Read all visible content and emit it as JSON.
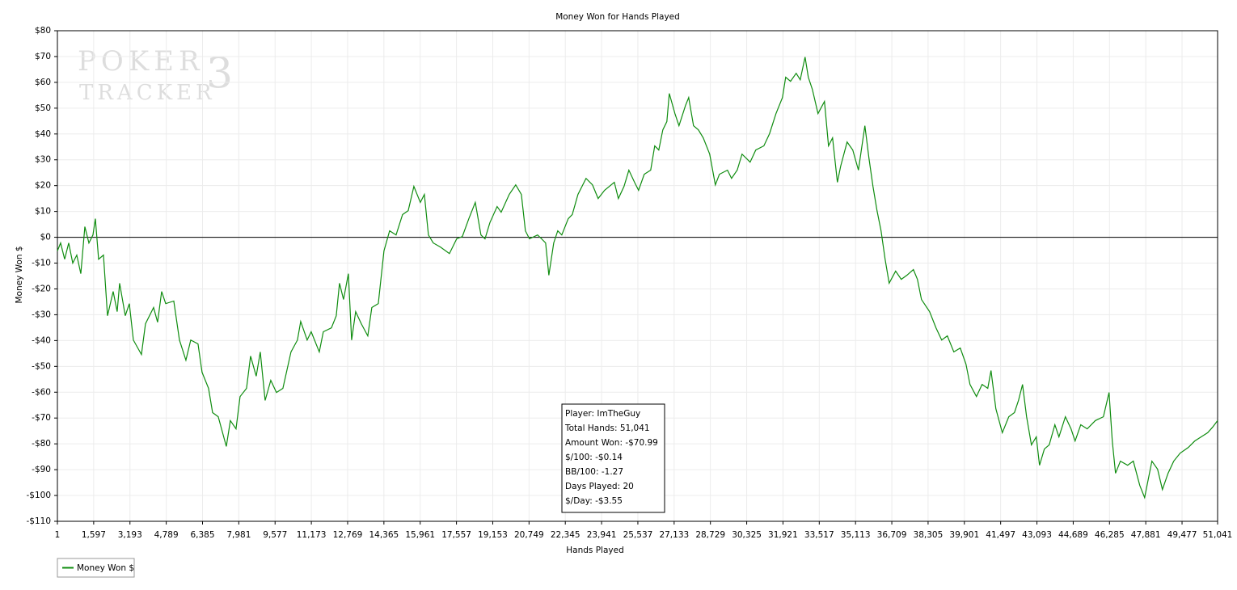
{
  "chart_data": {
    "type": "line",
    "title": "Money Won for Hands Played",
    "x_label": "Hands Played",
    "y_label": "Money Won $",
    "watermark": [
      "POKER",
      "TRACKER",
      "3"
    ],
    "stats": [
      "Player: ImTheGuy",
      "Total Hands: 51,041",
      "Amount Won: -$70.99",
      "$/100: -$0.14",
      "BB/100: -1.27",
      "Days Played: 20",
      "$/Day: -$3.55"
    ],
    "grid": true,
    "legend": "bottom-left",
    "xlim": [
      1,
      51041
    ],
    "ylim": [
      -110,
      80
    ],
    "yticks": [
      {
        "value": 80,
        "label": "$80"
      },
      {
        "value": 70,
        "label": "$70"
      },
      {
        "value": 60,
        "label": "$60"
      },
      {
        "value": 50,
        "label": "$50"
      },
      {
        "value": 40,
        "label": "$40"
      },
      {
        "value": 30,
        "label": "$30"
      },
      {
        "value": 20,
        "label": "$20"
      },
      {
        "value": 10,
        "label": "$10"
      },
      {
        "value": 0,
        "label": "$0"
      },
      {
        "value": -10,
        "label": "-$10"
      },
      {
        "value": -20,
        "label": "-$20"
      },
      {
        "value": -30,
        "label": "-$30"
      },
      {
        "value": -40,
        "label": "-$40"
      },
      {
        "value": -50,
        "label": "-$50"
      },
      {
        "value": -60,
        "label": "-$60"
      },
      {
        "value": -70,
        "label": "-$70"
      },
      {
        "value": -80,
        "label": "-$80"
      },
      {
        "value": -90,
        "label": "-$90"
      },
      {
        "value": -100,
        "label": "-$100"
      },
      {
        "value": -110,
        "label": "-$110"
      }
    ],
    "xticks": [
      1,
      {
        "value": 1597,
        "label": "1,597"
      },
      {
        "value": 3193,
        "label": "3,193"
      },
      {
        "value": 4789,
        "label": "4,789"
      },
      {
        "value": 6385,
        "label": "6,385"
      },
      {
        "value": 7981,
        "label": "7,981"
      },
      {
        "value": 9577,
        "label": "9,577"
      },
      {
        "value": 11173,
        "label": "11,173"
      },
      {
        "value": 12769,
        "label": "12,769"
      },
      {
        "value": 14365,
        "label": "14,365"
      },
      {
        "value": 15961,
        "label": "15,961"
      },
      {
        "value": 17557,
        "label": "17,557"
      },
      {
        "value": 19153,
        "label": "19,153"
      },
      {
        "value": 20749,
        "label": "20,749"
      },
      {
        "value": 22345,
        "label": "22,345"
      },
      {
        "value": 23941,
        "label": "23,941"
      },
      {
        "value": 25537,
        "label": "25,537"
      },
      {
        "value": 27133,
        "label": "27,133"
      },
      {
        "value": 28729,
        "label": "28,729"
      },
      {
        "value": 30325,
        "label": "30,325"
      },
      {
        "value": 31921,
        "label": "31,921"
      },
      {
        "value": 33517,
        "label": "33,517"
      },
      {
        "value": 35113,
        "label": "35,113"
      },
      {
        "value": 36709,
        "label": "36,709"
      },
      {
        "value": 38305,
        "label": "38,305"
      },
      {
        "value": 39901,
        "label": "39,901"
      },
      {
        "value": 41497,
        "label": "41,497"
      },
      {
        "value": 43093,
        "label": "43,093"
      },
      {
        "value": 44689,
        "label": "44,689"
      },
      {
        "value": 46285,
        "label": "46,285"
      },
      {
        "value": 47881,
        "label": "47,881"
      },
      {
        "value": 49477,
        "label": "49,477"
      },
      {
        "value": 51041,
        "label": "51,041"
      }
    ],
    "x": [
      1,
      142,
      320,
      498,
      676,
      853,
      1031,
      1209,
      1387,
      1565,
      1671,
      1814,
      2027,
      2205,
      2454,
      2631,
      2738,
      2987,
      3165,
      3343,
      3698,
      3876,
      4232,
      4409,
      4587,
      4765,
      5121,
      5370,
      5654,
      5867,
      6187,
      6365,
      6650,
      6828,
      7076,
      7432,
      7610,
      7859,
      8037,
      8321,
      8499,
      8748,
      8926,
      9139,
      9388,
      9637,
      9921,
      10277,
      10561,
      10704,
      10988,
      11166,
      11522,
      11699,
      12055,
      12268,
      12411,
      12589,
      12802,
      12944,
      13122,
      13371,
      13656,
      13833,
      14118,
      14367,
      14616,
      14900,
      15185,
      15434,
      15683,
      15967,
      16145,
      16323,
      16535,
      16855,
      17247,
      17567,
      17816,
      18101,
      18385,
      18634,
      18812,
      19025,
      19345,
      19523,
      19879,
      20163,
      20412,
      20590,
      20768,
      21124,
      21301,
      21479,
      21621,
      21835,
      22012,
      22190,
      22474,
      22652,
      22901,
      23257,
      23541,
      23790,
      24074,
      24501,
      24679,
      24928,
      25141,
      25390,
      25568,
      25817,
      26101,
      26279,
      26457,
      26635,
      26813,
      26919,
      27168,
      27346,
      27631,
      27773,
      27986,
      28200,
      28413,
      28697,
      28946,
      29124,
      29480,
      29658,
      29907,
      30120,
      30476,
      30724,
      31080,
      31329,
      31613,
      31898,
      32040,
      32253,
      32502,
      32680,
      32893,
      33035,
      33213,
      33462,
      33746,
      33924,
      34102,
      34315,
      34458,
      34742,
      34991,
      35240,
      35524,
      35702,
      35880,
      36058,
      36236,
      36414,
      36592,
      36876,
      37125,
      37374,
      37658,
      37836,
      38014,
      38370,
      38654,
      38903,
      39152,
      39437,
      39721,
      39970,
      40148,
      40432,
      40681,
      40930,
      41073,
      41286,
      41571,
      41855,
      42104,
      42282,
      42460,
      42638,
      42851,
      43064,
      43207,
      43420,
      43634,
      43883,
      44061,
      44345,
      44594,
      44772,
      45021,
      45305,
      45661,
      46017,
      46266,
      46408,
      46551,
      46764,
      47084,
      47333,
      47617,
      47831,
      47973,
      48151,
      48400,
      48613,
      48862,
      49111,
      49395,
      49751,
      50036,
      50320,
      50604,
      50817,
      51041
    ],
    "series": [
      {
        "name": "Money Won $",
        "color": "#0f8c0f",
        "values": [
          -5.3,
          -2.2,
          -8.5,
          -2.2,
          -10,
          -6.9,
          -14.1,
          4.1,
          -2.2,
          0.9,
          7.2,
          -8.5,
          -6.9,
          -30.4,
          -21.0,
          -28.8,
          -17.8,
          -30.4,
          -25.7,
          -39.8,
          -45.4,
          -33.5,
          -27.2,
          -32.9,
          -21.0,
          -25.7,
          -24.7,
          -39.8,
          -47.6,
          -39.8,
          -41.3,
          -52.3,
          -58.5,
          -67.9,
          -69.5,
          -81.0,
          -71.0,
          -74.2,
          -61.7,
          -58.5,
          -46.0,
          -53.8,
          -44.4,
          -63.2,
          -55.4,
          -60.1,
          -58.5,
          -44.4,
          -39.8,
          -32.6,
          -39.8,
          -36.6,
          -44.4,
          -36.6,
          -35.1,
          -30.4,
          -17.8,
          -24.1,
          -14.1,
          -39.8,
          -28.8,
          -33.5,
          -38.2,
          -27.2,
          -25.7,
          -5.3,
          2.5,
          0.9,
          8.8,
          10.3,
          19.7,
          13.5,
          16.6,
          0.9,
          -2.2,
          -3.8,
          -6.3,
          -0.6,
          0.3,
          7.2,
          13.5,
          0.9,
          -0.6,
          5.6,
          11.9,
          9.7,
          16.6,
          20.3,
          16.6,
          2.5,
          -0.6,
          0.9,
          -0.6,
          -2.2,
          -14.7,
          -2.2,
          2.5,
          0.9,
          7.2,
          8.8,
          16.6,
          22.8,
          20.3,
          15.0,
          18.2,
          21.3,
          15.0,
          19.7,
          26.0,
          21.3,
          18.2,
          24.4,
          26.0,
          35.4,
          33.8,
          41.6,
          44.8,
          55.7,
          47.9,
          43.2,
          51.0,
          54.1,
          43.2,
          41.6,
          38.5,
          32.2,
          20.3,
          24.4,
          26.0,
          22.8,
          26.0,
          32.2,
          29.1,
          33.8,
          35.4,
          40.1,
          47.9,
          54.1,
          62.0,
          60.4,
          63.5,
          61.0,
          69.8,
          62.0,
          57.3,
          47.9,
          52.6,
          35.4,
          38.5,
          21.3,
          27.5,
          36.9,
          33.8,
          26.0,
          43.2,
          30.7,
          19.7,
          10.3,
          2.5,
          -8.5,
          -17.8,
          -13.1,
          -16.3,
          -14.7,
          -12.5,
          -16.3,
          -24.1,
          -28.8,
          -35.1,
          -39.8,
          -38.2,
          -44.4,
          -42.9,
          -49.1,
          -57.0,
          -61.7,
          -57.0,
          -58.5,
          -51.6,
          -66.4,
          -75.7,
          -69.5,
          -67.9,
          -63.2,
          -57.0,
          -69.5,
          -80.4,
          -77.3,
          -88.3,
          -82.0,
          -80.4,
          -72.6,
          -77.3,
          -69.5,
          -74.2,
          -78.9,
          -72.6,
          -74.2,
          -71.0,
          -69.5,
          -60.1,
          -78.9,
          -91.4,
          -86.7,
          -88.3,
          -86.7,
          -96.1,
          -100.8,
          -94.5,
          -86.7,
          -89.8,
          -97.7,
          -91.4,
          -86.7,
          -83.6,
          -81.4,
          -78.9,
          -77.3,
          -75.7,
          -73.6,
          -70.99
        ]
      }
    ]
  }
}
